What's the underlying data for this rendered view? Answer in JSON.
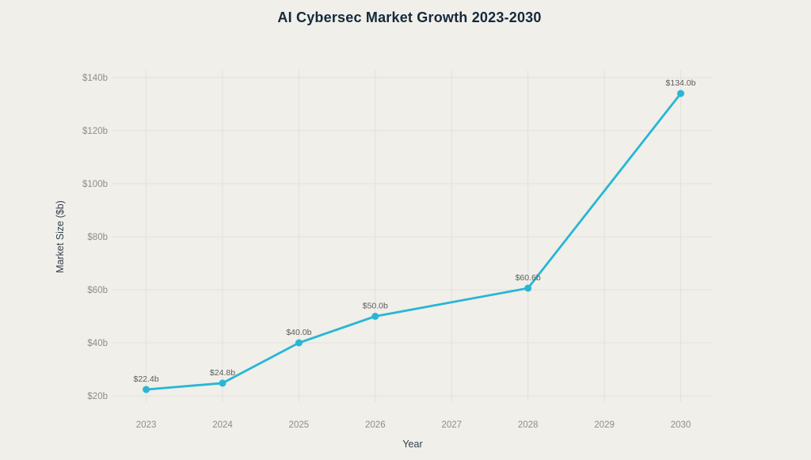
{
  "page": {
    "background": "#f0efe9"
  },
  "chart_data": {
    "type": "line",
    "title": "AI Cybersec Market Growth 2023-2030",
    "xlabel": "Year",
    "ylabel": "Market Size ($b)",
    "x": [
      2023,
      2024,
      2025,
      2026,
      2028,
      2030
    ],
    "y": [
      22.4,
      24.8,
      40.0,
      50.0,
      60.6,
      134.0
    ],
    "point_labels": [
      "$22.4b",
      "$24.8b",
      "$40.0b",
      "$50.0b",
      "$60.6b",
      "$134.0b"
    ],
    "x_ticks": {
      "values": [
        2023,
        2024,
        2025,
        2026,
        2027,
        2028,
        2029,
        2030
      ],
      "labels": [
        "2023",
        "2024",
        "2025",
        "2026",
        "2027",
        "2028",
        "2029",
        "2030"
      ]
    },
    "y_ticks": {
      "values": [
        20,
        40,
        60,
        80,
        100,
        120,
        140
      ],
      "labels": [
        "$20b",
        "$40b",
        "$60b",
        "$80b",
        "$100b",
        "$120b",
        "$140b"
      ]
    },
    "xlim": [
      2022.6,
      2030.42
    ],
    "ylim": [
      20,
      140
    ],
    "grid": true,
    "legend": "none",
    "colors": {
      "line": "#29b6d6",
      "marker": "#29b6d6",
      "grid": "#e2e1da",
      "tick_label": "#8e8e89",
      "point_label": "#5b5c5e",
      "axis_title": "#33414b",
      "title": "#14293b",
      "background": "#f0efe9"
    }
  }
}
